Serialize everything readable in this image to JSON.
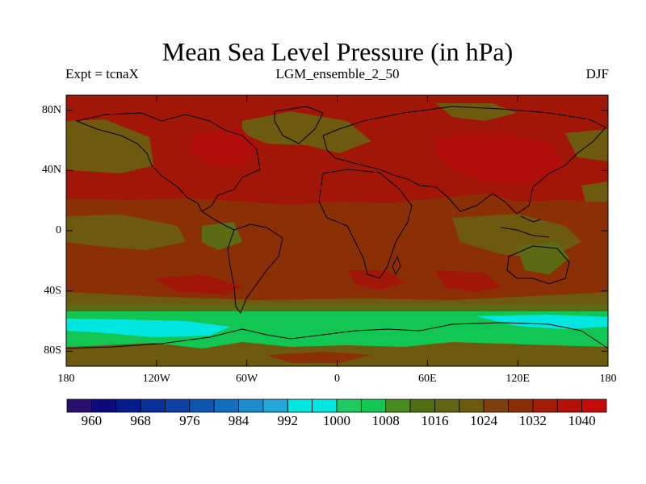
{
  "title": "Mean Sea Level Pressure (in hPa)",
  "experiment": "Expt = tcnaX",
  "run": "LGM_ensemble_2_50",
  "season": "DJF",
  "lat_ticks": [
    {
      "label": "80N",
      "lat": 80
    },
    {
      "label": "40N",
      "lat": 40
    },
    {
      "label": "0",
      "lat": 0
    },
    {
      "label": "40S",
      "lat": -40
    },
    {
      "label": "80S",
      "lat": -80
    }
  ],
  "lon_ticks": [
    {
      "label": "180",
      "lon": -180
    },
    {
      "label": "120W",
      "lon": -120
    },
    {
      "label": "60W",
      "lon": -60
    },
    {
      "label": "0",
      "lon": 0
    },
    {
      "label": "60E",
      "lon": 60
    },
    {
      "label": "120E",
      "lon": 120
    },
    {
      "label": "180",
      "lon": 180
    }
  ],
  "colorbar": {
    "levels_hPa": [
      960,
      964,
      968,
      972,
      976,
      980,
      984,
      988,
      992,
      996,
      1000,
      1004,
      1008,
      1012,
      1016,
      1020,
      1024,
      1028,
      1032,
      1036,
      1040,
      1044
    ],
    "colors": [
      "#2a0f6e",
      "#0c0a7e",
      "#061b8e",
      "#0a2e9a",
      "#0d3fa5",
      "#0e55b2",
      "#1070bd",
      "#1b8ccc",
      "#22a7d8",
      "#00e6e0",
      "#00e6e0",
      "#1ec962",
      "#12c653",
      "#4a8a1e",
      "#4f6e10",
      "#5f6412",
      "#6e5a0e",
      "#7d400c",
      "#8b2e08",
      "#a31c08",
      "#b51008",
      "#c40a0a"
    ],
    "labels": [
      "960",
      "968",
      "976",
      "984",
      "992",
      "1000",
      "1008",
      "1016",
      "1024",
      "1032",
      "1040"
    ]
  },
  "field_colors": {
    "high_red": "#b10d0b",
    "red": "#a21608",
    "rust": "#8b3006",
    "olive_brown": "#6e5a0e",
    "olive": "#5c6a14",
    "green": "#12c653",
    "cyan": "#00e6e0"
  }
}
